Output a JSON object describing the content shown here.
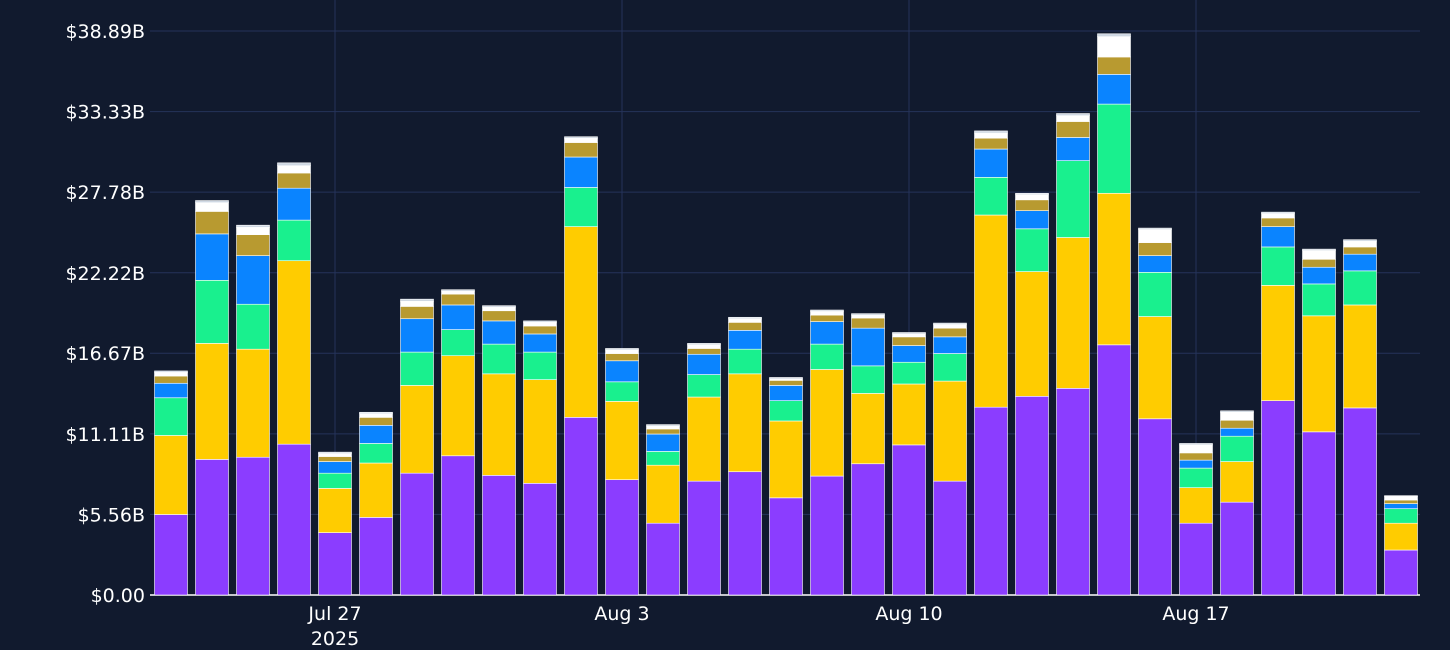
{
  "chart_data": {
    "type": "bar",
    "stacked": true,
    "grid": true,
    "legend": "none",
    "ylim": [
      0,
      38.89
    ],
    "y_ticks": [
      "$0.00",
      "$5.56B",
      "$11.11B",
      "$16.67B",
      "$22.22B",
      "$27.78B",
      "$33.33B",
      "$38.89B"
    ],
    "y_tick_values": [
      0,
      5.56,
      11.11,
      16.67,
      22.22,
      27.78,
      33.33,
      38.89
    ],
    "x_ticks": [
      {
        "day": 4,
        "label": "Jul 27",
        "sublabel": "2025"
      },
      {
        "day": 11,
        "label": "Aug 3",
        "sublabel": ""
      },
      {
        "day": 18,
        "label": "Aug 10",
        "sublabel": ""
      },
      {
        "day": 25,
        "label": "Aug 17",
        "sublabel": ""
      }
    ],
    "categories": [
      "Jul 23",
      "Jul 24",
      "Jul 25",
      "Jul 26",
      "Jul 27",
      "Jul 28",
      "Jul 29",
      "Jul 30",
      "Jul 31",
      "Aug 1",
      "Aug 2",
      "Aug 3",
      "Aug 4",
      "Aug 5",
      "Aug 6",
      "Aug 7",
      "Aug 8",
      "Aug 9",
      "Aug 10",
      "Aug 11",
      "Aug 12",
      "Aug 13",
      "Aug 14",
      "Aug 15",
      "Aug 16",
      "Aug 17",
      "Aug 18",
      "Aug 19",
      "Aug 20",
      "Aug 21",
      "Aug 22"
    ],
    "series_colors": [
      "#8b3dff",
      "#ffcc00",
      "#19f08e",
      "#0a84ff",
      "#b89a30",
      "#ffffff",
      "#cfd8e3"
    ],
    "series": [
      {
        "values": [
          5.55,
          9.35,
          9.5,
          10.4,
          4.3,
          5.35,
          8.4,
          9.6,
          8.25,
          7.7,
          12.25,
          7.95,
          4.95,
          7.85,
          8.5,
          6.7,
          8.2,
          9.05,
          10.35,
          7.85,
          12.95,
          13.7,
          14.25,
          17.25,
          12.15,
          4.95,
          6.4,
          13.4,
          11.25,
          12.9,
          3.1
        ]
      },
      {
        "values": [
          5.45,
          8.0,
          7.45,
          12.65,
          3.05,
          3.75,
          6.05,
          6.9,
          7.0,
          7.15,
          13.15,
          5.4,
          4.0,
          5.8,
          6.75,
          5.3,
          7.35,
          4.85,
          4.2,
          6.9,
          13.25,
          8.6,
          10.4,
          10.45,
          7.05,
          2.45,
          2.8,
          7.95,
          8.0,
          7.1,
          1.85
        ]
      },
      {
        "values": [
          2.6,
          4.35,
          3.1,
          2.8,
          1.05,
          1.35,
          2.3,
          1.8,
          2.05,
          1.9,
          2.7,
          1.35,
          0.95,
          1.55,
          1.7,
          1.4,
          1.75,
          1.9,
          1.5,
          1.9,
          2.6,
          2.95,
          5.3,
          6.15,
          3.05,
          1.35,
          1.75,
          2.65,
          2.2,
          2.35,
          1.0
        ]
      },
      {
        "values": [
          1.0,
          3.2,
          3.35,
          2.2,
          0.8,
          1.25,
          2.3,
          1.7,
          1.6,
          1.25,
          2.1,
          1.45,
          1.2,
          1.4,
          1.3,
          1.05,
          1.55,
          2.6,
          1.15,
          1.15,
          1.95,
          1.25,
          1.6,
          2.05,
          1.15,
          0.55,
          0.55,
          1.4,
          1.15,
          1.15,
          0.35
        ]
      },
      {
        "values": [
          0.5,
          1.55,
          1.45,
          1.05,
          0.35,
          0.55,
          0.85,
          0.75,
          0.7,
          0.55,
          1.0,
          0.5,
          0.35,
          0.4,
          0.55,
          0.35,
          0.45,
          0.7,
          0.6,
          0.6,
          0.75,
          0.75,
          1.1,
          1.2,
          0.9,
          0.5,
          0.55,
          0.6,
          0.55,
          0.5,
          0.25
        ]
      },
      {
        "values": [
          0.25,
          0.6,
          0.5,
          0.5,
          0.2,
          0.25,
          0.35,
          0.2,
          0.25,
          0.25,
          0.3,
          0.25,
          0.2,
          0.25,
          0.25,
          0.1,
          0.25,
          0.2,
          0.2,
          0.25,
          0.35,
          0.35,
          0.4,
          1.4,
          0.9,
          0.55,
          0.55,
          0.3,
          0.6,
          0.4,
          0.25
        ]
      },
      {
        "values": [
          0.1,
          0.15,
          0.15,
          0.2,
          0.1,
          0.1,
          0.15,
          0.1,
          0.1,
          0.1,
          0.1,
          0.1,
          0.1,
          0.1,
          0.1,
          0.1,
          0.1,
          0.1,
          0.1,
          0.1,
          0.15,
          0.1,
          0.15,
          0.2,
          0.1,
          0.1,
          0.1,
          0.1,
          0.1,
          0.1,
          0.05
        ]
      }
    ]
  }
}
